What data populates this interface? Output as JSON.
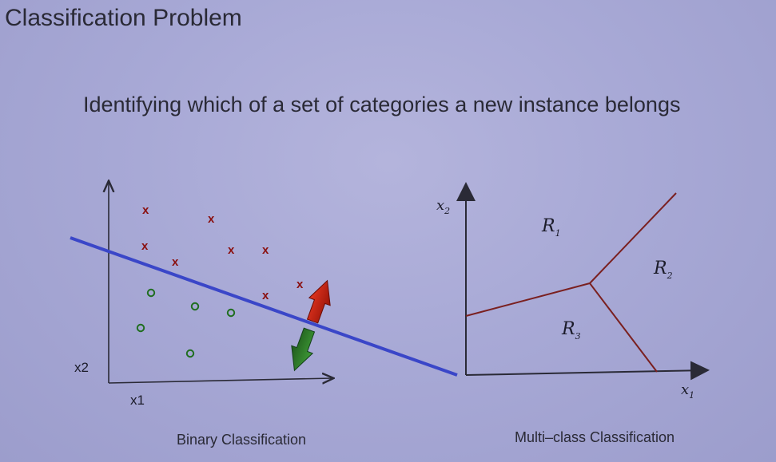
{
  "slide": {
    "title": "Classification Problem",
    "subtitle": "Identifying which of a set of categories a new instance belongs"
  },
  "binary": {
    "caption": "Binary Classification",
    "x_axis_label": "x1",
    "y_axis_label": "x2",
    "class_x_marker": "x",
    "class_o_marker": "o",
    "boundary_color": "#3a46c8",
    "up_arrow_color": "#c81e10",
    "down_arrow_color": "#2e7d2a"
  },
  "multiclass": {
    "caption": "Multi–class Classification",
    "x_axis_var": "x",
    "x_axis_sub": "1",
    "y_axis_var": "x",
    "y_axis_sub": "2",
    "regions": [
      {
        "letter": "R",
        "sub": "1"
      },
      {
        "letter": "R",
        "sub": "2"
      },
      {
        "letter": "R",
        "sub": "3"
      }
    ],
    "boundary_color": "#7a2020"
  }
}
